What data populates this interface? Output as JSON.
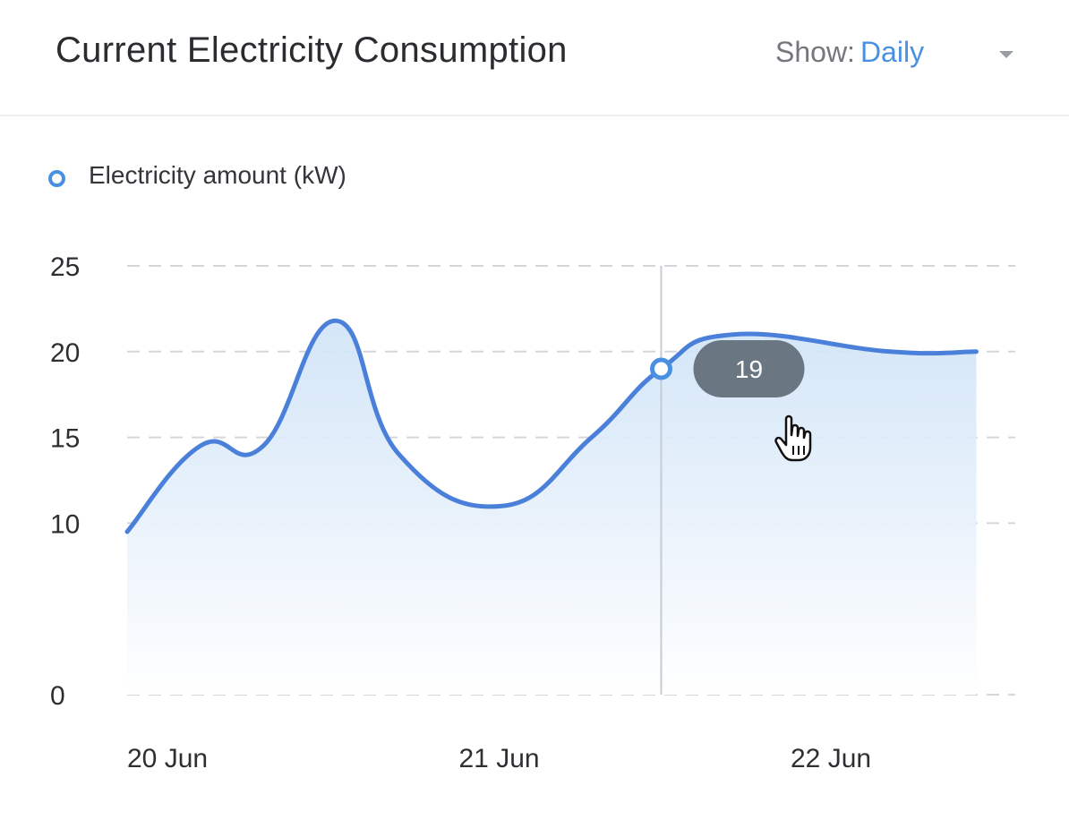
{
  "header": {
    "title": "Current Electricity Consumption",
    "show_label": "Show:",
    "show_value": "Daily"
  },
  "colors": {
    "line": "#4a80d9",
    "accent": "#4a90e2",
    "fill_top": "#cfe3f7",
    "grid": "#d4d6da",
    "tooltip_bg": "#6b7683"
  },
  "chart_data": {
    "type": "area",
    "legend": "Electricity amount (kW)",
    "y_ticks": [
      "0",
      "10",
      "15",
      "20",
      "25"
    ],
    "ylim": [
      0,
      25
    ],
    "x_ticks": [
      {
        "label": "20 Jun",
        "x": 0
      },
      {
        "label": "21 Jun",
        "x": 1
      },
      {
        "label": "22 Jun",
        "x": 2
      }
    ],
    "xlim": [
      0,
      2.7
    ],
    "grid": true,
    "series": [
      {
        "name": "Electricity amount (kW)",
        "points": [
          [
            0.0,
            9.5
          ],
          [
            0.22,
            14.5
          ],
          [
            0.41,
            14.5
          ],
          [
            0.63,
            21.8
          ],
          [
            0.82,
            14.0
          ],
          [
            1.13,
            11.0
          ],
          [
            1.4,
            15.0
          ],
          [
            1.61,
            19.0
          ],
          [
            1.83,
            21.0
          ],
          [
            2.3,
            20.0
          ],
          [
            2.56,
            20.0
          ]
        ]
      }
    ],
    "tooltip": {
      "x": 1.61,
      "value": "19"
    }
  }
}
